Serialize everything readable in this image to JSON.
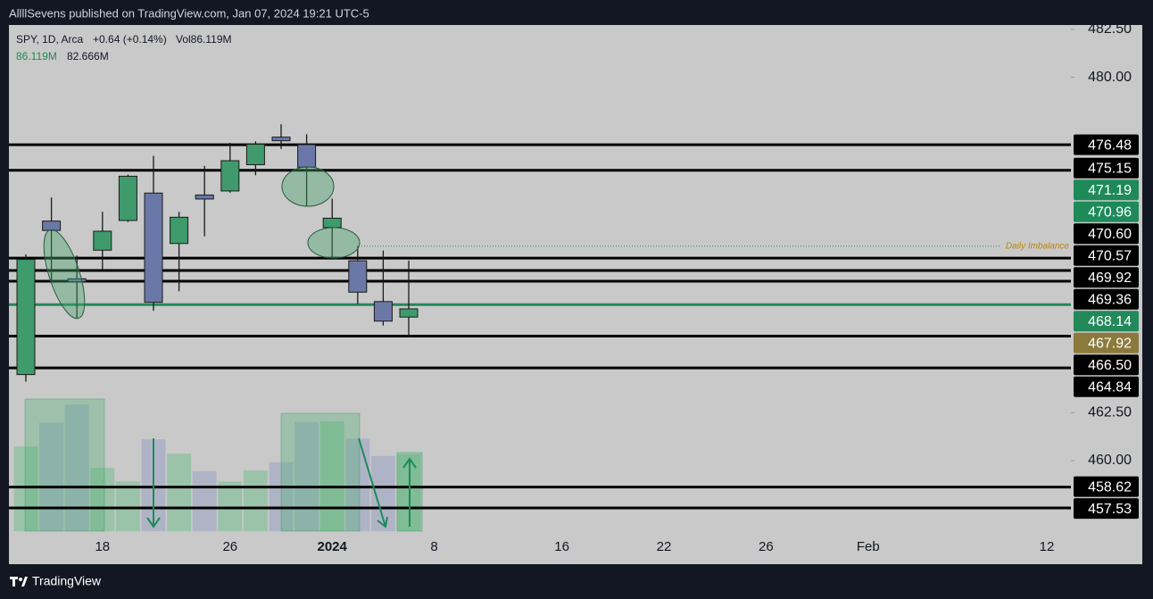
{
  "header": {
    "text": "AllllSevens published on TradingView.com, Jan 07, 2024 19:21 UTC-5"
  },
  "footer": {
    "brand": "TradingView"
  },
  "chart_data": {
    "type": "candlestick",
    "legend": {
      "symbol": "SPY, 1D, Arca",
      "change": "+0.64 (+0.14%)",
      "volume": "Vol86.119M",
      "volume_value": "86.119M",
      "volume_ma": "82.666M"
    },
    "categories": [
      null,
      null,
      null,
      "18",
      null,
      null,
      null,
      null,
      "26",
      null,
      null,
      null,
      "2024",
      null,
      null,
      null,
      "8",
      null,
      null,
      null,
      null,
      "16",
      null,
      null,
      null,
      "22",
      null,
      null,
      null,
      "26",
      null,
      null,
      null,
      "Feb",
      null,
      null,
      null,
      null,
      null,
      null,
      "12"
    ],
    "open": [
      464.49,
      472.5,
      469.49,
      470.98,
      472.53,
      473.96,
      471.33,
      473.86,
      474.07,
      475.44,
      476.88,
      476.49,
      472.16,
      470.43,
      468.3,
      467.49,
      null,
      null,
      null,
      null,
      null,
      null,
      null,
      null,
      null,
      null,
      null,
      null,
      null,
      null,
      null,
      null,
      null,
      null,
      null,
      null,
      null,
      null,
      null,
      null,
      null
    ],
    "high": [
      470.76,
      473.73,
      470.7,
      472.98,
      474.92,
      475.9,
      472.98,
      475.38,
      476.58,
      476.66,
      477.55,
      477.03,
      473.67,
      471.19,
      470.96,
      470.44,
      null,
      null,
      null,
      null,
      null,
      null,
      null,
      null,
      null,
      null,
      null,
      null,
      null,
      null,
      null,
      null,
      null,
      null,
      null,
      null,
      null,
      null,
      null,
      null,
      null
    ],
    "low": [
      464.12,
      469.25,
      467.43,
      469.89,
      472.45,
      467.82,
      468.84,
      471.7,
      473.98,
      474.89,
      476.26,
      473.3,
      470.49,
      468.17,
      467.05,
      466.43,
      null,
      null,
      null,
      null,
      null,
      null,
      null,
      null,
      null,
      null,
      null,
      null,
      null,
      null,
      null,
      null,
      null,
      null,
      null,
      null,
      null,
      null,
      null,
      null,
      null
    ],
    "close": [
      470.5,
      472.01,
      469.33,
      471.97,
      474.84,
      468.26,
      472.7,
      473.65,
      475.65,
      476.51,
      476.69,
      475.31,
      472.65,
      468.79,
      467.28,
      467.92,
      null,
      null,
      null,
      null,
      null,
      null,
      null,
      null,
      null,
      null,
      null,
      null,
      null,
      null,
      null,
      null,
      null,
      null,
      null,
      null,
      null,
      null,
      null,
      null,
      null
    ],
    "volume": [
      94.9,
      121.7,
      141.9,
      70.9,
      55.8,
      102.9,
      86.7,
      67.1,
      55.4,
      68.0,
      77.2,
      122.3,
      123.0,
      103.6,
      84.2,
      86.119,
      null,
      null,
      null,
      null,
      null,
      null,
      null,
      null,
      null,
      null,
      null,
      null,
      null,
      null,
      null,
      null,
      null,
      null,
      null,
      null,
      null,
      null,
      null,
      null,
      null
    ],
    "up_color": "#3f9a6c",
    "down_color": "#6a78a8",
    "volume_up_color": "#93c2a3",
    "volume_down_color": "#a9b0c6",
    "ylim": [
      456.32,
      482.73
    ],
    "yticks": [
      {
        "value": 460,
        "label": "460.00"
      },
      {
        "value": 462.5,
        "label": "462.50"
      },
      {
        "value": 480,
        "label": "480.00"
      },
      {
        "value": 482.5,
        "label": "482.50"
      }
    ],
    "levels": [
      {
        "value": 476.48,
        "color": "#000000",
        "line": "solid"
      },
      {
        "value": 475.15,
        "color": "#000000",
        "line": "solid"
      },
      {
        "value": 471.19,
        "color": "#1e8a5a",
        "line": "dotted",
        "annotation": "Daily Imbalance",
        "annotation_color": "#b8860b"
      },
      {
        "value": 470.96,
        "color": "#1e8a5a",
        "line": "none"
      },
      {
        "value": 470.6,
        "label": "470.60",
        "color": "#000000",
        "line": "none"
      },
      {
        "value": 470.57,
        "color": "#000000",
        "line": "solid"
      },
      {
        "value": 469.92,
        "color": "#000000",
        "line": "solid"
      },
      {
        "value": 469.36,
        "color": "#000000",
        "line": "solid"
      },
      {
        "value": 468.14,
        "color": "#23895a",
        "line": "solid"
      },
      {
        "value": 467.92,
        "color": "#8c7a3c",
        "line": "none"
      },
      {
        "value": 466.5,
        "label": "466.50",
        "color": "#000000",
        "line": "solid"
      },
      {
        "value": 464.84,
        "color": "#000000",
        "line": "solid"
      },
      {
        "value": 458.62,
        "color": "#000000",
        "line": "solid"
      },
      {
        "value": 457.53,
        "color": "#000000",
        "line": "solid"
      }
    ]
  }
}
